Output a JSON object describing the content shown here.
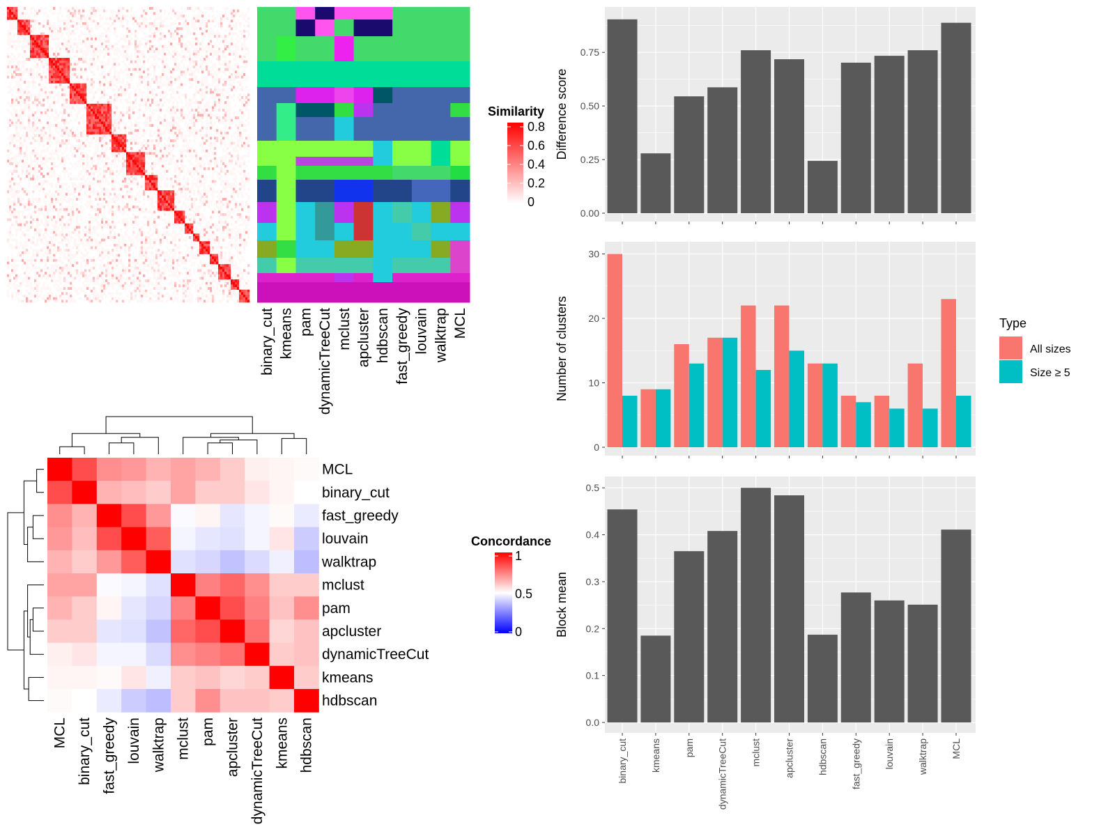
{
  "chart_data": [
    {
      "type": "heatmap",
      "panel": "similarity-matrix",
      "legend": {
        "title": "Similarity",
        "ticks": [
          "0.8",
          "0.6",
          "0.4",
          "0.2",
          "0"
        ],
        "range": [
          0,
          0.85
        ],
        "colors": [
          "#ffffff",
          "#ff0000"
        ]
      }
    },
    {
      "type": "heatmap",
      "panel": "cluster-membership",
      "columns": [
        "binary_cut",
        "kmeans",
        "pam",
        "dynamicTreeCut",
        "mclust",
        "apcluster",
        "hdbscan",
        "fast_greedy",
        "louvain",
        "walktrap",
        "MCL"
      ],
      "bands": [
        {
          "rows": 18,
          "colors": [
            "#44d96b",
            "#44d96b",
            "#ff55ee",
            "#1a0a6e",
            "#ff55ee",
            "#ff55ee",
            "#ff55ee",
            "#44d96b",
            "#44d96b",
            "#44d96b",
            "#44d96b"
          ]
        },
        {
          "rows": 24,
          "colors": [
            "#44d96b",
            "#44d96b",
            "#1a0a6e",
            "#ff55ee",
            "#44d96b",
            "#1a0a6e",
            "#1a0a6e",
            "#44d96b",
            "#44d96b",
            "#44d96b",
            "#44d96b"
          ]
        },
        {
          "rows": 36,
          "colors": [
            "#44d96b",
            "#33ee44",
            "#44d96b",
            "#44d96b",
            "#ee22ee",
            "#44d96b",
            "#44d96b",
            "#44d96b",
            "#44d96b",
            "#44d96b",
            "#44d96b"
          ]
        },
        {
          "rows": 37,
          "colors": [
            "#00dd99",
            "#00dd99",
            "#00dd99",
            "#00dd99",
            "#00dd99",
            "#00dd99",
            "#00dd99",
            "#00dd99",
            "#00dd99",
            "#00dd99",
            "#00dd99"
          ]
        },
        {
          "rows": 23,
          "colors": [
            "#4466aa",
            "#4466aa",
            "#dd22ee",
            "#dd22ee",
            "#ee44ee",
            "#dd22ee",
            "#005566",
            "#4466aa",
            "#4466aa",
            "#4466aa",
            "#4466aa"
          ]
        },
        {
          "rows": 20,
          "colors": [
            "#4466aa",
            "#33ee88",
            "#005566",
            "#005566",
            "#33dd44",
            "#bb33ee",
            "#4466aa",
            "#4466aa",
            "#4466aa",
            "#4466aa",
            "#33dd44"
          ]
        },
        {
          "rows": 34,
          "colors": [
            "#4466aa",
            "#33ee88",
            "#4466aa",
            "#4466aa",
            "#22ccdd",
            "#4466aa",
            "#4466aa",
            "#4466aa",
            "#4466aa",
            "#4466aa",
            "#4466aa"
          ]
        },
        {
          "rows": 23,
          "colors": [
            "#88ff44",
            "#88ff44",
            "#88ff44",
            "#88ff44",
            "#88ff44",
            "#88ff44",
            "#22ccdd",
            "#88ff44",
            "#88ff44",
            "#00dd99",
            "#88ff44"
          ]
        },
        {
          "rows": 13,
          "colors": [
            "#88ff44",
            "#88ff44",
            "#bb44dd",
            "#bb44dd",
            "#bb44dd",
            "#bb44dd",
            "#22ccdd",
            "#88ff44",
            "#88ff44",
            "#00dd99",
            "#88ff44"
          ]
        },
        {
          "rows": 20,
          "colors": [
            "#33dd44",
            "#88ff44",
            "#33dd44",
            "#33dd44",
            "#33dd44",
            "#33dd44",
            "#33dd44",
            "#44d96b",
            "#44d96b",
            "#44d96b",
            "#22dd44"
          ]
        },
        {
          "rows": 32,
          "colors": [
            "#224488",
            "#88ff44",
            "#224488",
            "#224488",
            "#1133ee",
            "#1133ee",
            "#224488",
            "#224488",
            "#4466bb",
            "#4466bb",
            "#224488"
          ]
        },
        {
          "rows": 30,
          "colors": [
            "#bb33ee",
            "#88ff44",
            "#22ccdd",
            "#339999",
            "#bb33ee",
            "#cc3333",
            "#22ccdd",
            "#44ccaa",
            "#22ccdd",
            "#88aa22",
            "#bb33ee"
          ]
        },
        {
          "rows": 25,
          "colors": [
            "#22ccdd",
            "#88ff44",
            "#22ccdd",
            "#339999",
            "#22ccdd",
            "#cc3333",
            "#22ccdd",
            "#22ccdd",
            "#44ccaa",
            "#22ccdd",
            "#22ccdd"
          ]
        },
        {
          "rows": 25,
          "colors": [
            "#88aa22",
            "#33dd44",
            "#22ccdd",
            "#22ccdd",
            "#88aa22",
            "#88aa22",
            "#22ccdd",
            "#22ccdd",
            "#22ccdd",
            "#88aa22",
            "#dd44cc"
          ]
        },
        {
          "rows": 22,
          "colors": [
            "#44ccaa",
            "#88ff44",
            "#44ccaa",
            "#44ccaa",
            "#44ccaa",
            "#44ccaa",
            "#22ccdd",
            "#44ccaa",
            "#44ccaa",
            "#44ccaa",
            "#dd44cc"
          ]
        },
        {
          "rows": 13,
          "colors": [
            "#dd22cc",
            "#dd22cc",
            "#dd22cc",
            "#dd22cc",
            "#bb33ee",
            "#dd22cc",
            "#22ccdd",
            "#dd22cc",
            "#dd22cc",
            "#dd22cc",
            "#dd22cc"
          ]
        },
        {
          "rows": 29,
          "colors": [
            "#cc11bb",
            "#cc11bb",
            "#cc11bb",
            "#cc11bb",
            "#cc11bb",
            "#cc11bb",
            "#cc11bb",
            "#cc11bb",
            "#cc11bb",
            "#cc11bb",
            "#cc11bb"
          ]
        }
      ]
    },
    {
      "type": "heatmap",
      "panel": "concordance",
      "labels": [
        "MCL",
        "binary_cut",
        "fast_greedy",
        "louvain",
        "walktrap",
        "mclust",
        "pam",
        "apcluster",
        "dynamicTreeCut",
        "kmeans",
        "hdbscan"
      ],
      "matrix": [
        [
          1,
          0.85,
          0.72,
          0.7,
          0.65,
          0.68,
          0.65,
          0.6,
          0.53,
          0.52,
          0.51
        ],
        [
          0.85,
          1,
          0.65,
          0.63,
          0.6,
          0.68,
          0.6,
          0.6,
          0.55,
          0.52,
          0.5
        ],
        [
          0.72,
          0.65,
          1,
          0.85,
          0.7,
          0.49,
          0.52,
          0.45,
          0.48,
          0.51,
          0.46
        ],
        [
          0.7,
          0.63,
          0.85,
          1,
          0.82,
          0.48,
          0.45,
          0.44,
          0.48,
          0.55,
          0.4
        ],
        [
          0.65,
          0.6,
          0.7,
          0.82,
          1,
          0.44,
          0.42,
          0.38,
          0.43,
          0.47,
          0.37
        ],
        [
          0.68,
          0.68,
          0.49,
          0.48,
          0.44,
          1,
          0.75,
          0.8,
          0.72,
          0.6,
          0.6
        ],
        [
          0.65,
          0.6,
          0.52,
          0.45,
          0.42,
          0.75,
          1,
          0.85,
          0.75,
          0.62,
          0.72
        ],
        [
          0.6,
          0.6,
          0.45,
          0.44,
          0.38,
          0.8,
          0.85,
          1,
          0.78,
          0.58,
          0.62
        ],
        [
          0.53,
          0.55,
          0.48,
          0.48,
          0.43,
          0.72,
          0.75,
          0.78,
          1,
          0.6,
          0.62
        ],
        [
          0.52,
          0.52,
          0.51,
          0.55,
          0.47,
          0.6,
          0.62,
          0.58,
          0.6,
          1,
          0.6
        ],
        [
          0.51,
          0.5,
          0.46,
          0.4,
          0.37,
          0.6,
          0.72,
          0.62,
          0.62,
          0.6,
          1
        ]
      ],
      "legend": {
        "title": "Concordance",
        "ticks": [
          "1",
          "0.5",
          "0"
        ],
        "colors": [
          "#0000ff",
          "#ffffff",
          "#ff0000"
        ]
      }
    },
    {
      "type": "bar",
      "panel": "difference-score",
      "categories": [
        "binary_cut",
        "kmeans",
        "pam",
        "dynamicTreeCut",
        "mclust",
        "apcluster",
        "hdbscan",
        "fast_greedy",
        "louvain",
        "walktrap",
        "MCL"
      ],
      "values": [
        0.904,
        0.279,
        0.545,
        0.587,
        0.76,
        0.718,
        0.244,
        0.702,
        0.734,
        0.76,
        0.888
      ],
      "ylabel": "Difference score",
      "yticks": [
        "0.00",
        "0.25",
        "0.50",
        "0.75"
      ],
      "ylim": [
        0,
        0.95
      ],
      "color": "#595959"
    },
    {
      "type": "bar",
      "panel": "number-of-clusters",
      "categories": [
        "binary_cut",
        "kmeans",
        "pam",
        "dynamicTreeCut",
        "mclust",
        "apcluster",
        "hdbscan",
        "fast_greedy",
        "louvain",
        "walktrap",
        "MCL"
      ],
      "series": [
        {
          "name": "All sizes",
          "color": "#f8766d",
          "values": [
            30,
            9,
            16,
            17,
            22,
            22,
            13,
            8,
            8,
            13,
            23
          ]
        },
        {
          "name": "Size ≥ 5",
          "color": "#00bfc4",
          "values": [
            8,
            9,
            13,
            17,
            12,
            15,
            13,
            7,
            6,
            6,
            8
          ]
        }
      ],
      "ylabel": "Number of clusters",
      "yticks": [
        "0",
        "10",
        "20",
        "30"
      ],
      "ylim": [
        0,
        31.5
      ],
      "legend": {
        "title": "Type",
        "position": "right"
      }
    },
    {
      "type": "bar",
      "panel": "block-mean",
      "categories": [
        "binary_cut",
        "kmeans",
        "pam",
        "dynamicTreeCut",
        "mclust",
        "apcluster",
        "hdbscan",
        "fast_greedy",
        "louvain",
        "walktrap",
        "MCL"
      ],
      "values": [
        0.454,
        0.185,
        0.365,
        0.408,
        0.5,
        0.484,
        0.187,
        0.277,
        0.26,
        0.251,
        0.411
      ],
      "ylabel": "Block mean",
      "yticks": [
        "0.0",
        "0.1",
        "0.2",
        "0.3",
        "0.4",
        "0.5"
      ],
      "ylim": [
        0,
        0.52
      ],
      "color": "#595959"
    }
  ]
}
